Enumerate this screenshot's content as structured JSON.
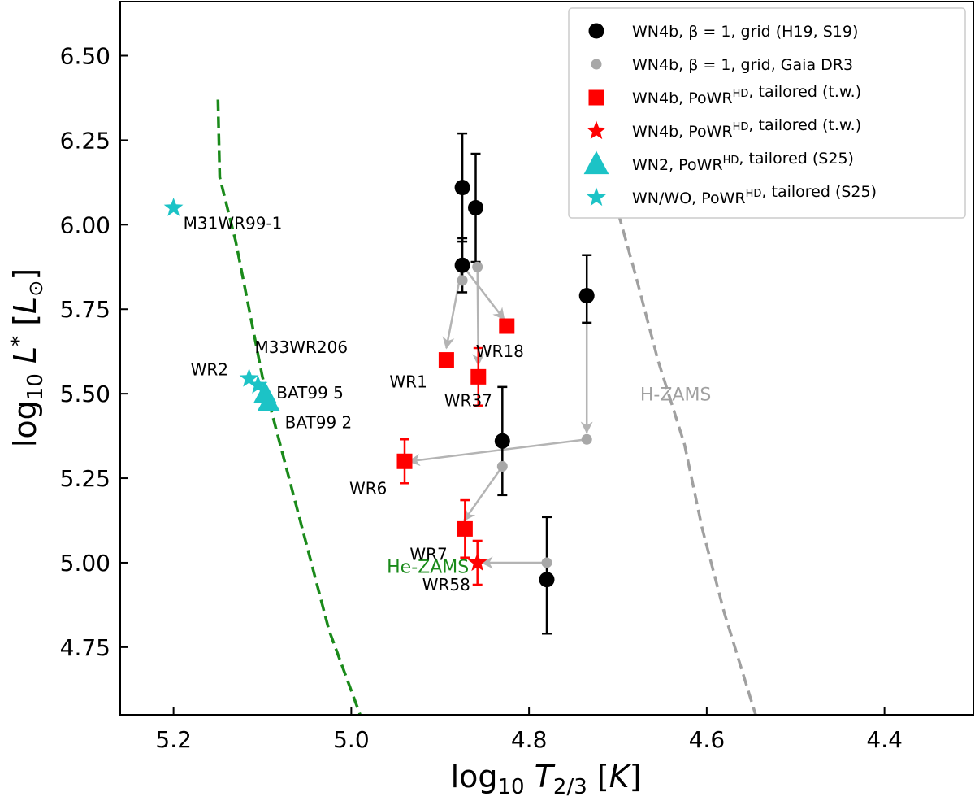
{
  "chart_data": {
    "type": "scatter",
    "title": "",
    "xlabel": "log10 T_2/3 [K]",
    "ylabel": "log10 L_* [L_sun]",
    "xlim": [
      5.26,
      4.3
    ],
    "ylim": [
      4.55,
      6.66
    ],
    "x_inverted": true,
    "grid": false,
    "legend_position": "top-right",
    "xticks": [
      5.2,
      5.0,
      4.8,
      4.6,
      4.4
    ],
    "xtick_labels": [
      "5.2",
      "5.0",
      "4.8",
      "4.6",
      "4.4"
    ],
    "yticks": [
      4.75,
      5.0,
      5.25,
      5.5,
      5.75,
      6.0,
      6.25,
      6.5
    ],
    "ytick_labels": [
      "4.75",
      "5.00",
      "5.25",
      "5.50",
      "5.75",
      "6.00",
      "6.25",
      "6.50"
    ],
    "colors": {
      "grid_black": "#000000",
      "gaia_grey": "#a8a8a8",
      "tailored_red": "#ff0000",
      "s25_cyan": "#1cc3c6",
      "he_zams": "#1a8a1a",
      "h_zams": "#a0a0a0",
      "arrow": "#b4b4b4"
    },
    "legend": [
      {
        "label": "WN4b, β = 1, grid (H19, S19)",
        "marker": "circle",
        "color": "#000000"
      },
      {
        "label": "WN4b, β = 1, grid, Gaia DR3",
        "marker": "small-circle",
        "color": "#a8a8a8"
      },
      {
        "label": "WN4b, PoWR^HD, tailored (t.w.)",
        "marker": "square",
        "color": "#ff0000"
      },
      {
        "label": "WN4b, PoWR^HD, tailored (t.w.)",
        "marker": "star",
        "color": "#ff0000"
      },
      {
        "label": "WN2, PoWR^HD, tailored (S25)",
        "marker": "triangle",
        "color": "#1cc3c6"
      },
      {
        "label": "WN/WO, PoWR^HD, tailored (S25)",
        "marker": "star",
        "color": "#1cc3c6"
      }
    ],
    "series": [
      {
        "name": "WN4b, β=1, grid (H19, S19)",
        "marker": "circle",
        "points": [
          {
            "x": 4.875,
            "y": 6.11,
            "yerr": [
              0.16,
              0.16
            ]
          },
          {
            "x": 4.86,
            "y": 6.05,
            "yerr": [
              0.16,
              0.16
            ]
          },
          {
            "x": 4.875,
            "y": 5.88,
            "yerr": [
              0.08,
              0.08
            ]
          },
          {
            "x": 4.735,
            "y": 5.79,
            "yerr": [
              0.08,
              0.12
            ]
          },
          {
            "x": 4.83,
            "y": 5.36,
            "yerr": [
              0.16,
              0.16
            ]
          },
          {
            "x": 4.78,
            "y": 4.95,
            "yerr": [
              0.16,
              0.185
            ]
          }
        ]
      },
      {
        "name": "WN4b, β=1, grid, Gaia DR3",
        "marker": "small-circle",
        "points": [
          {
            "x": 4.875,
            "y": 5.835
          },
          {
            "x": 4.858,
            "y": 5.875
          },
          {
            "x": 4.735,
            "y": 5.365
          },
          {
            "x": 4.83,
            "y": 5.285
          },
          {
            "x": 4.78,
            "y": 5.0
          }
        ]
      },
      {
        "name": "WN4b, PoWR^HD, tailored (t.w.) squares",
        "marker": "square",
        "points": [
          {
            "x": 4.825,
            "y": 5.7,
            "label": "WR18"
          },
          {
            "x": 4.893,
            "y": 5.6,
            "label": "WR1"
          },
          {
            "x": 4.857,
            "y": 5.55,
            "label": "WR37",
            "yerr": [
              0.085,
              0.085
            ]
          },
          {
            "x": 4.94,
            "y": 5.3,
            "label": "WR6",
            "yerr": [
              0.065,
              0.065
            ]
          },
          {
            "x": 4.872,
            "y": 5.1,
            "label": "WR7",
            "yerr": [
              0.085,
              0.085
            ]
          }
        ]
      },
      {
        "name": "WN4b, PoWR^HD, tailored (t.w.) star",
        "marker": "star",
        "points": [
          {
            "x": 4.858,
            "y": 5.0,
            "label": "WR58",
            "yerr": [
              0.065,
              0.065
            ]
          }
        ]
      },
      {
        "name": "WN2, PoWR^HD, tailored (S25)",
        "marker": "triangle",
        "points": [
          {
            "x": 5.097,
            "y": 5.5,
            "label": "BAT99 5"
          },
          {
            "x": 5.093,
            "y": 5.475,
            "label": "BAT99 2"
          }
        ]
      },
      {
        "name": "WN/WO, PoWR^HD, tailored (S25)",
        "marker": "star",
        "points": [
          {
            "x": 5.2,
            "y": 6.05,
            "label": "M31WR99-1"
          },
          {
            "x": 5.115,
            "y": 5.545,
            "label": "WR2"
          },
          {
            "x": 5.105,
            "y": 5.525,
            "label": "M33WR206"
          }
        ]
      }
    ],
    "arrows": [
      {
        "from": [
          4.875,
          5.88
        ],
        "to": [
          4.893,
          5.635
        ]
      },
      {
        "from": [
          4.875,
          5.88
        ],
        "to": [
          4.828,
          5.72
        ]
      },
      {
        "from": [
          4.858,
          5.875
        ],
        "to": [
          4.857,
          5.585
        ]
      },
      {
        "from": [
          4.735,
          5.79
        ],
        "to": [
          4.735,
          5.385
        ]
      },
      {
        "from": [
          4.735,
          5.365
        ],
        "to": [
          4.935,
          5.3
        ]
      },
      {
        "from": [
          4.83,
          5.285
        ],
        "to": [
          4.873,
          5.125
        ]
      },
      {
        "from": [
          4.78,
          5.0
        ],
        "to": [
          4.853,
          5.0
        ]
      }
    ],
    "tracks": [
      {
        "name": "He-ZAMS",
        "label": "He-ZAMS",
        "label_pos": [
          4.96,
          4.97
        ],
        "style": "dashed",
        "points": [
          [
            5.15,
            6.37
          ],
          [
            5.148,
            6.14
          ],
          [
            5.13,
            5.95
          ],
          [
            5.115,
            5.75
          ],
          [
            5.1,
            5.55
          ],
          [
            5.075,
            5.3
          ],
          [
            5.05,
            5.05
          ],
          [
            5.025,
            4.8
          ],
          [
            4.99,
            4.55
          ]
        ]
      },
      {
        "name": "H-ZAMS",
        "label": "H-ZAMS",
        "label_pos": [
          4.675,
          5.48
        ],
        "style": "dashed",
        "points": [
          [
            4.715,
            6.18
          ],
          [
            4.68,
            5.85
          ],
          [
            4.655,
            5.6
          ],
          [
            4.625,
            5.35
          ],
          [
            4.605,
            5.1
          ],
          [
            4.58,
            4.85
          ],
          [
            4.545,
            4.55
          ]
        ]
      }
    ]
  }
}
